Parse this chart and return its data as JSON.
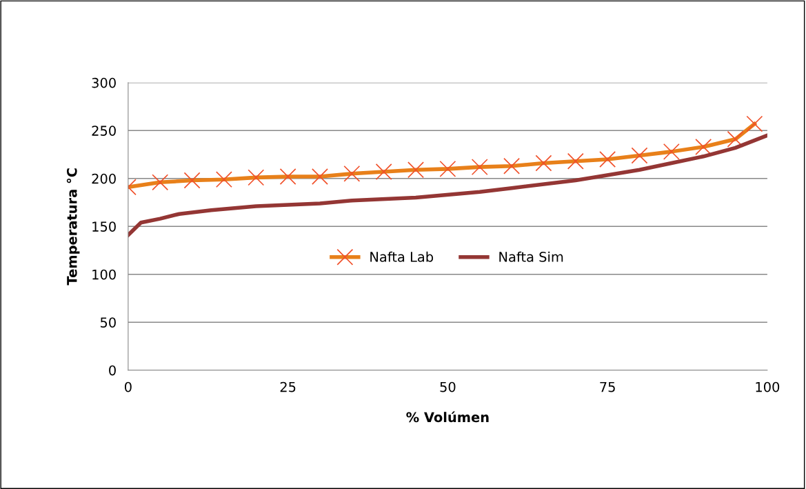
{
  "chart_data": {
    "type": "line",
    "xlabel": "% Volúmen",
    "ylabel": "Temperatura °C",
    "xlim": [
      0,
      100
    ],
    "xticks": [
      0,
      25,
      50,
      75,
      100
    ],
    "ylim": [
      0,
      300
    ],
    "yticks": [
      0,
      50,
      100,
      150,
      200,
      250,
      300
    ],
    "grid": "y",
    "legend": "center",
    "series": [
      {
        "name": "Nafta Lab",
        "color": "#e8801a",
        "marker": "cross",
        "x": [
          0,
          5,
          10,
          15,
          20,
          25,
          30,
          35,
          40,
          45,
          50,
          55,
          60,
          65,
          70,
          75,
          80,
          85,
          90,
          95,
          98
        ],
        "values": [
          191,
          196,
          198,
          199,
          201,
          202,
          202,
          205,
          207,
          209,
          210,
          212,
          213,
          216,
          218,
          220,
          224,
          228,
          233,
          241,
          257
        ]
      },
      {
        "name": "Nafta Sim",
        "color": "#943634",
        "marker": "none",
        "x": [
          0,
          2,
          5,
          8,
          13,
          20,
          30,
          35,
          45,
          55,
          60,
          70,
          80,
          85,
          90,
          95,
          100
        ],
        "values": [
          141,
          154,
          158,
          163,
          167,
          171,
          174,
          177,
          180,
          186,
          190,
          198,
          209,
          216,
          223,
          232,
          245
        ]
      }
    ]
  }
}
